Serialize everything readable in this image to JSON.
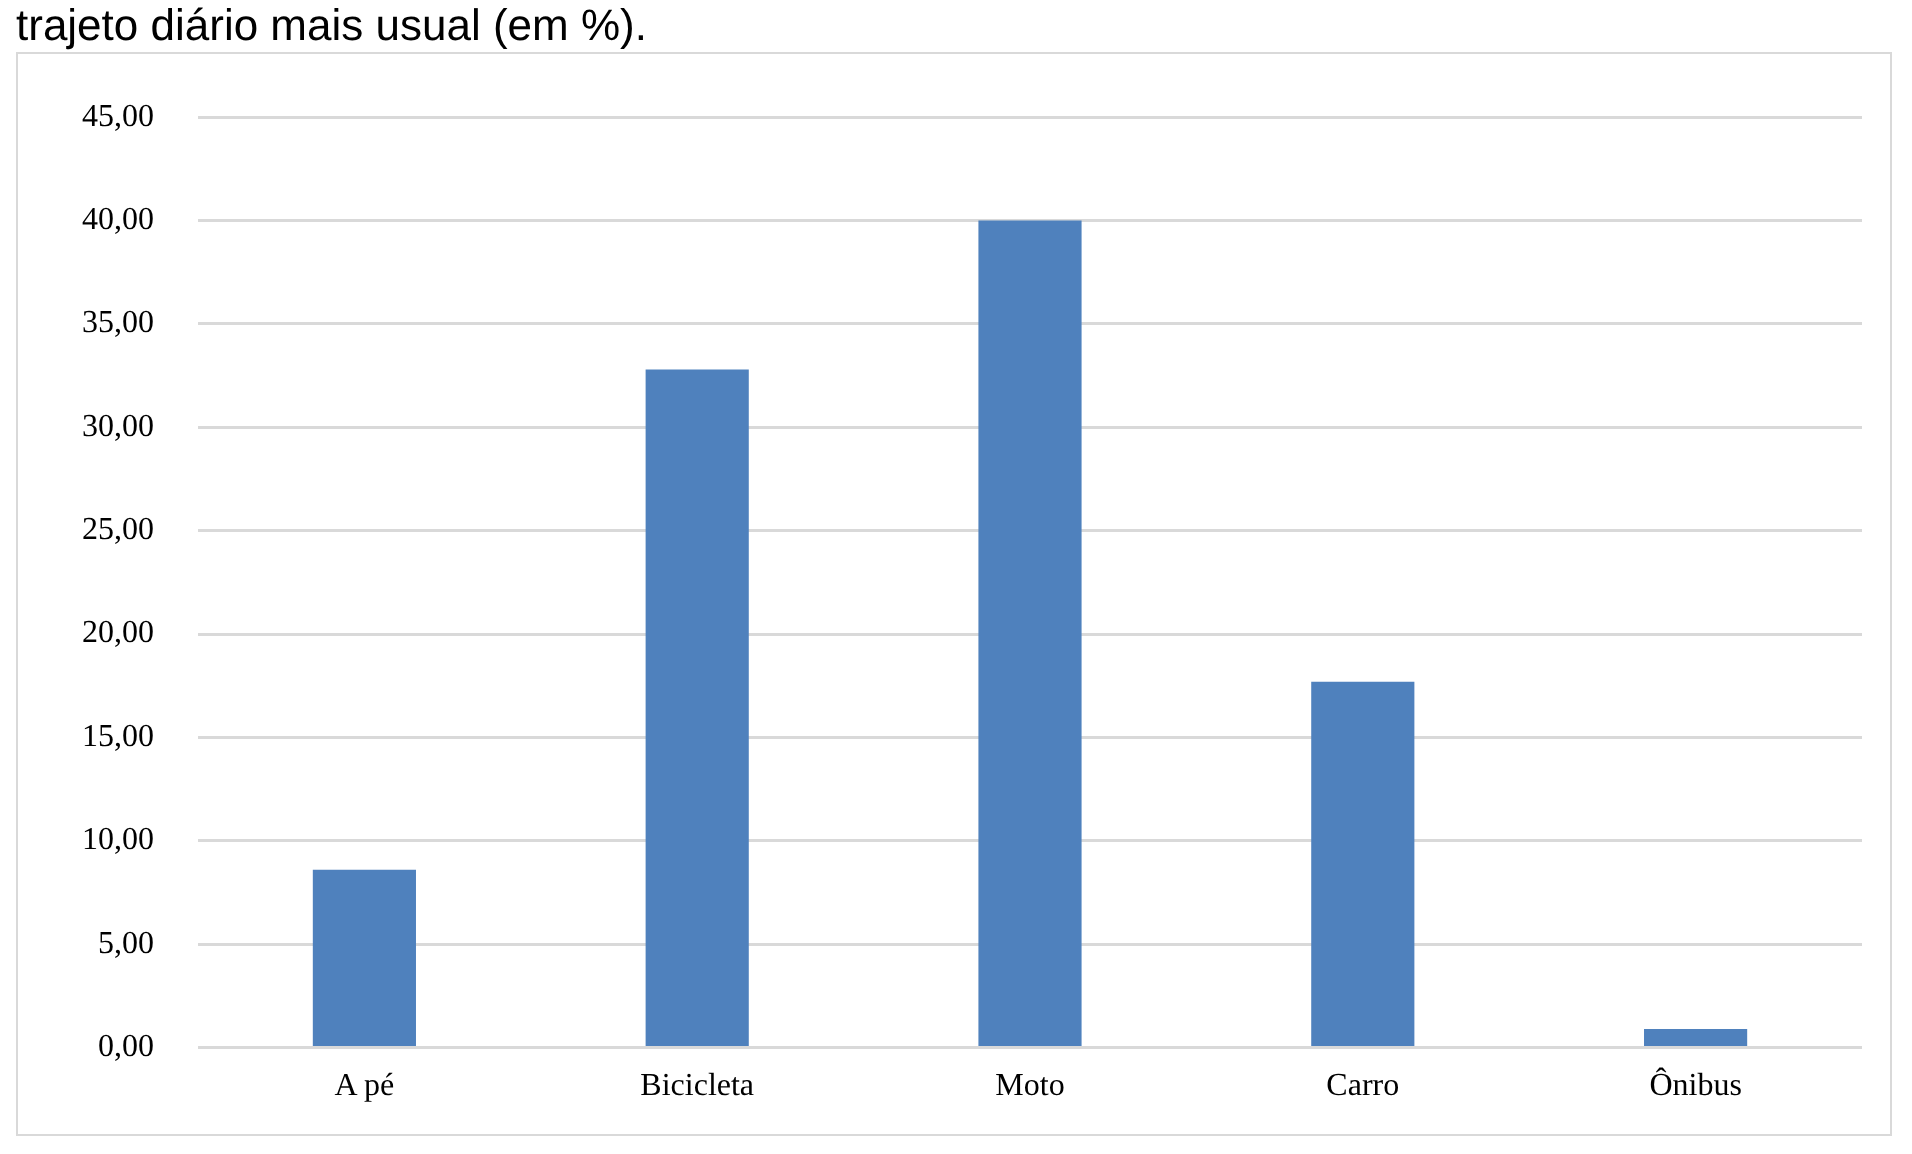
{
  "chart_data": {
    "type": "bar",
    "title": "trajeto diário mais usual (em %).",
    "categories": [
      "A pé",
      "Bicicleta",
      "Moto",
      "Carro",
      "Ônibus"
    ],
    "values": [
      8.6,
      32.8,
      40.0,
      17.7,
      0.9
    ],
    "color": "#4f81bd",
    "ylim": [
      0,
      45
    ],
    "yticks": [
      {
        "value": 0,
        "label": "0,00"
      },
      {
        "value": 5,
        "label": "5,00"
      },
      {
        "value": 10,
        "label": "10,00"
      },
      {
        "value": 15,
        "label": "15,00"
      },
      {
        "value": 20,
        "label": "20,00"
      },
      {
        "value": 25,
        "label": "25,00"
      },
      {
        "value": 30,
        "label": "30,00"
      },
      {
        "value": 35,
        "label": "35,00"
      },
      {
        "value": 40,
        "label": "40,00"
      },
      {
        "value": 45,
        "label": "45,00"
      }
    ],
    "grid": "y",
    "legend": false
  }
}
